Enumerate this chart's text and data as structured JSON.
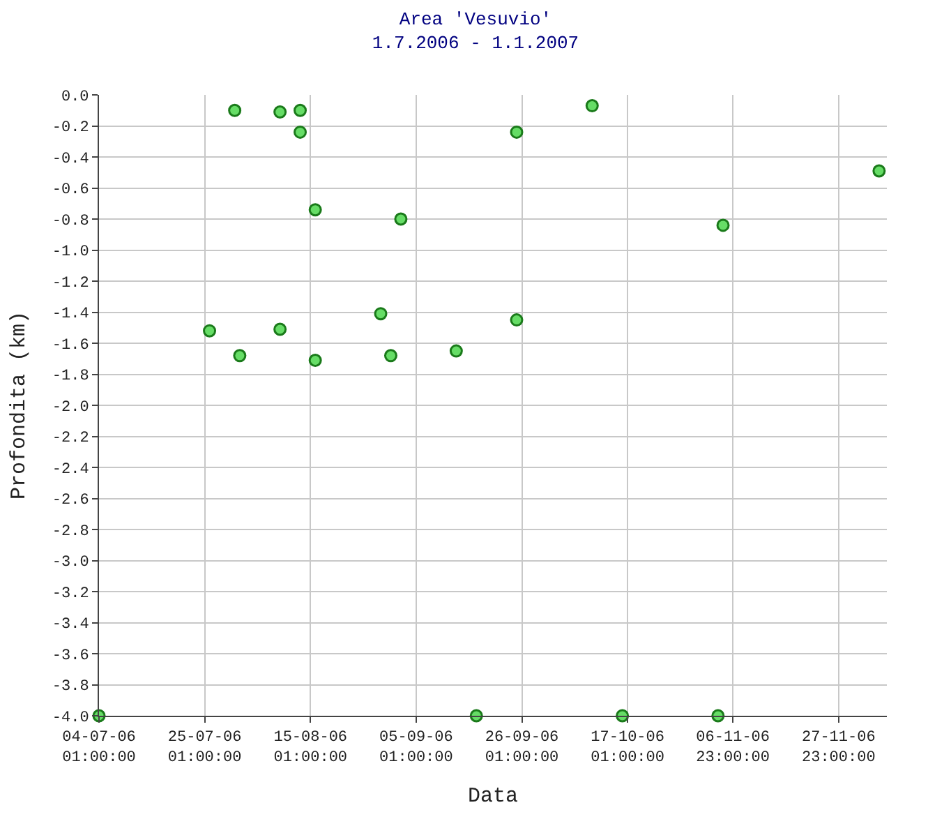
{
  "chart_data": {
    "type": "scatter",
    "title": "Area 'Vesuvio'\n1.7.2006 - 1.1.2007",
    "xlabel": "Data",
    "ylabel": "Profondita (km)",
    "x": [
      "2006-07-04T01:00",
      "2006-07-26",
      "2006-07-31",
      "2006-08-01",
      "2006-08-09",
      "2006-08-09",
      "2006-08-13",
      "2006-08-13",
      "2006-08-16",
      "2006-08-16",
      "2006-08-29",
      "2006-08-31",
      "2006-09-02",
      "2006-09-13",
      "2006-09-17",
      "2006-09-25",
      "2006-09-25",
      "2006-10-10",
      "2006-10-16",
      "2006-11-04",
      "2006-11-05",
      "2006-12-06"
    ],
    "series": [
      {
        "color": "#66dd66",
        "values": [
          -4.0,
          -1.52,
          -0.1,
          -1.68,
          -0.11,
          -1.51,
          -0.1,
          -0.24,
          -0.74,
          -1.71,
          -1.41,
          -1.68,
          -0.8,
          -1.65,
          -4.0,
          -0.24,
          -1.45,
          -0.07,
          -4.0,
          -4.0,
          -0.84,
          -0.49
        ]
      }
    ],
    "xlim": [
      "2006-07-04T01:00",
      "2006-12-07T13:00"
    ],
    "xticks": [
      {
        "value": "2006-07-04T01:00",
        "label": "04-07-06\n01:00:00"
      },
      {
        "value": "2006-07-25T01:00",
        "label": "25-07-06\n01:00:00"
      },
      {
        "value": "2006-08-15T01:00",
        "label": "15-08-06\n01:00:00"
      },
      {
        "value": "2006-09-05T01:00",
        "label": "05-09-06\n01:00:00"
      },
      {
        "value": "2006-09-26T01:00",
        "label": "26-09-06\n01:00:00"
      },
      {
        "value": "2006-10-17T01:00",
        "label": "17-10-06\n01:00:00"
      },
      {
        "value": "2006-11-06T23:00",
        "label": "06-11-06\n23:00:00"
      },
      {
        "value": "2006-11-27T23:00",
        "label": "27-11-06\n23:00:00"
      }
    ],
    "ylim": [
      -4.0,
      0.0
    ],
    "yticks": [
      {
        "value": 0,
        "label": "0.0"
      },
      {
        "value": -0.2,
        "label": "-0.2"
      },
      {
        "value": -0.4,
        "label": "-0.4"
      },
      {
        "value": -0.6,
        "label": "-0.6"
      },
      {
        "value": -0.8,
        "label": "-0.8"
      },
      {
        "value": -1.0,
        "label": "-1.0"
      },
      {
        "value": -1.2,
        "label": "-1.2"
      },
      {
        "value": -1.4,
        "label": "-1.4"
      },
      {
        "value": -1.6,
        "label": "-1.6"
      },
      {
        "value": -1.8,
        "label": "-1.8"
      },
      {
        "value": -2.0,
        "label": "-2.0"
      },
      {
        "value": -2.2,
        "label": "-2.2"
      },
      {
        "value": -2.4,
        "label": "-2.4"
      },
      {
        "value": -2.6,
        "label": "-2.6"
      },
      {
        "value": -2.8,
        "label": "-2.8"
      },
      {
        "value": -3.0,
        "label": "-3.0"
      },
      {
        "value": -3.2,
        "label": "-3.2"
      },
      {
        "value": -3.4,
        "label": "-3.4"
      },
      {
        "value": -3.6,
        "label": "-3.6"
      },
      {
        "value": -3.8,
        "label": "-3.8"
      },
      {
        "value": -4.0,
        "label": "-4.0"
      }
    ],
    "grid": true,
    "marker": "circle"
  }
}
